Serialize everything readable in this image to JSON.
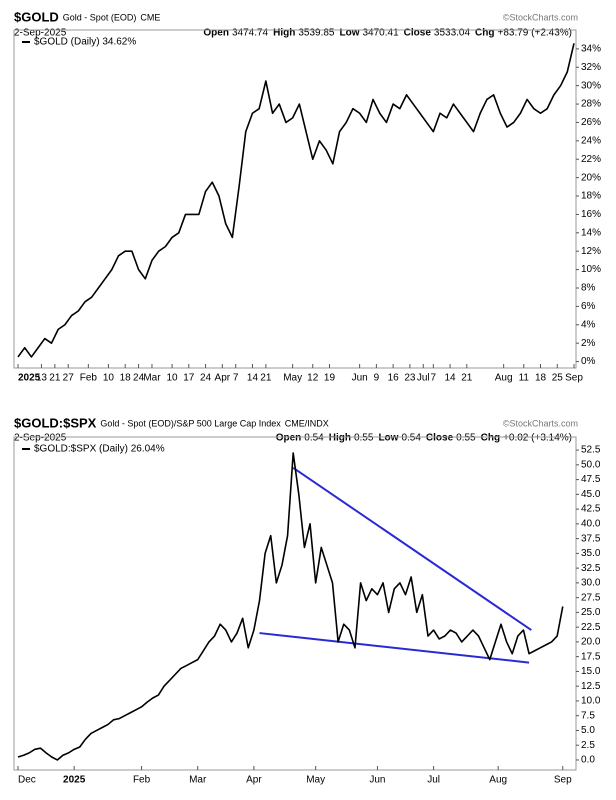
{
  "chart_data": [
    {
      "type": "line",
      "symbol": "$GOLD",
      "name": "Gold - Spot (EOD)",
      "exchange": "CME",
      "source": "©StockCharts.com",
      "date": "2-Sep-2025",
      "ohlc": [
        {
          "label": "Open",
          "value": 3474.74
        },
        {
          "label": "High",
          "value": 3539.85
        },
        {
          "label": "Low",
          "value": 3470.41
        },
        {
          "label": "Close",
          "value": 3533.04
        },
        {
          "label": "Chg",
          "value": "+83.79 (+2.43%)"
        }
      ],
      "series": [
        {
          "name": "$GOLD (Daily) 34.62%",
          "color": "#000000",
          "values": [
            0.5,
            1.5,
            0.5,
            1.5,
            2.5,
            2,
            3.5,
            4,
            5,
            5.5,
            6.5,
            7,
            8,
            9,
            10,
            11.5,
            12,
            12,
            10,
            9,
            11,
            12,
            12.5,
            13.5,
            14,
            16,
            16,
            16,
            18.5,
            19.5,
            18,
            15,
            13.5,
            19,
            25,
            27,
            27.5,
            30.5,
            27,
            28,
            26,
            26.5,
            28,
            25,
            22,
            24,
            23,
            21.5,
            25,
            26,
            27.5,
            27,
            26,
            28.5,
            27,
            26,
            28,
            27.5,
            29,
            28,
            27,
            26,
            25,
            27,
            26.5,
            28,
            27,
            26,
            25,
            27,
            28.5,
            29,
            27,
            25.5,
            26,
            27,
            28.5,
            27.5,
            27,
            27.5,
            29,
            30,
            31.5,
            34.6
          ]
        }
      ],
      "xlim": [
        0,
        83
      ],
      "xticks": [
        {
          "value": 0,
          "label": "2025"
        },
        {
          "value": 3.5,
          "label": "13"
        },
        {
          "value": 5.5,
          "label": "21"
        },
        {
          "value": 7.5,
          "label": "27"
        },
        {
          "value": 10.5,
          "label": "Feb"
        },
        {
          "value": 13.5,
          "label": "10"
        },
        {
          "value": 16,
          "label": "18"
        },
        {
          "value": 18,
          "label": "24"
        },
        {
          "value": 20,
          "label": "Mar"
        },
        {
          "value": 23,
          "label": "10"
        },
        {
          "value": 25.5,
          "label": "17"
        },
        {
          "value": 28,
          "label": "24"
        },
        {
          "value": 30.5,
          "label": "Apr"
        },
        {
          "value": 32.5,
          "label": "7"
        },
        {
          "value": 35,
          "label": "14"
        },
        {
          "value": 37,
          "label": "21"
        },
        {
          "value": 41,
          "label": "May"
        },
        {
          "value": 44,
          "label": "12"
        },
        {
          "value": 46.5,
          "label": "19"
        },
        {
          "value": 51,
          "label": "Jun"
        },
        {
          "value": 53.5,
          "label": "9"
        },
        {
          "value": 56,
          "label": "16"
        },
        {
          "value": 58.5,
          "label": "23"
        },
        {
          "value": 60.5,
          "label": "Jul"
        },
        {
          "value": 62,
          "label": "7"
        },
        {
          "value": 64.5,
          "label": "14"
        },
        {
          "value": 67,
          "label": "21"
        },
        {
          "value": 72.5,
          "label": "Aug"
        },
        {
          "value": 75.5,
          "label": "11"
        },
        {
          "value": 78,
          "label": "18"
        },
        {
          "value": 80.5,
          "label": "25"
        },
        {
          "value": 83,
          "label": "Sep"
        }
      ],
      "ylim": [
        -0.7,
        35.4
      ],
      "yticks": [
        {
          "value": 0,
          "label": "0%"
        },
        {
          "value": 2,
          "label": "2%"
        },
        {
          "value": 4,
          "label": "4%"
        },
        {
          "value": 6,
          "label": "6%"
        },
        {
          "value": 8,
          "label": "8%"
        },
        {
          "value": 10,
          "label": "10%"
        },
        {
          "value": 12,
          "label": "12%"
        },
        {
          "value": 14,
          "label": "14%"
        },
        {
          "value": 16,
          "label": "16%"
        },
        {
          "value": 18,
          "label": "18%"
        },
        {
          "value": 20,
          "label": "20%"
        },
        {
          "value": 22,
          "label": "22%"
        },
        {
          "value": 24,
          "label": "24%"
        },
        {
          "value": 26,
          "label": "26%"
        },
        {
          "value": 28,
          "label": "28%"
        },
        {
          "value": 30,
          "label": "30%"
        },
        {
          "value": 32,
          "label": "32%"
        },
        {
          "value": 34,
          "label": "34%"
        }
      ],
      "grid": false
    },
    {
      "type": "line",
      "symbol": "$GOLD:$SPX",
      "name": "Gold - Spot (EOD)/S&P 500 Large Cap Index",
      "exchange": "CME/INDX",
      "source": "©StockCharts.com",
      "date": "2-Sep-2025",
      "ohlc": [
        {
          "label": "Open",
          "value": 0.54
        },
        {
          "label": "High",
          "value": 0.55
        },
        {
          "label": "Low",
          "value": 0.54
        },
        {
          "label": "Close",
          "value": 0.55
        },
        {
          "label": "Chg",
          "value": "+0.02 (+3.14%)"
        }
      ],
      "series": [
        {
          "name": "$GOLD:$SPX (Daily) 26.04%",
          "color": "#000000",
          "values": [
            0.5,
            0.8,
            1.2,
            1.8,
            2,
            1.2,
            0.5,
            0,
            0.8,
            1.2,
            1.8,
            2.2,
            3.5,
            4.5,
            5,
            5.5,
            6,
            6.8,
            7,
            7.5,
            8,
            8.5,
            9,
            9.8,
            10.5,
            11,
            12.5,
            13.5,
            14.5,
            15.5,
            16,
            16.5,
            17,
            18.5,
            20,
            21,
            23,
            22,
            20,
            21.5,
            24,
            19,
            22,
            27,
            35,
            38,
            30,
            33,
            38,
            52,
            45,
            36,
            40,
            30,
            36,
            33,
            30,
            20,
            23,
            22,
            19,
            30,
            27,
            29,
            28,
            30,
            25,
            29,
            30,
            28,
            31,
            25,
            28,
            21,
            22,
            20.5,
            21,
            22,
            21.5,
            20,
            21,
            22,
            21,
            19,
            17,
            20,
            23,
            20,
            18,
            21,
            22,
            18,
            18.5,
            19,
            19.5,
            20,
            21,
            26
          ]
        }
      ],
      "trendlines": [
        {
          "color": "#2a2ad4",
          "x": [
            49,
            91.4
          ],
          "y": [
            49.5,
            22
          ]
        },
        {
          "color": "#2a2ad4",
          "x": [
            43,
            91
          ],
          "y": [
            21.5,
            16.5
          ]
        }
      ],
      "xlim": [
        0,
        99
      ],
      "xticks": [
        {
          "value": 0,
          "label": "Dec"
        },
        {
          "value": 10,
          "label": "2025"
        },
        {
          "value": 22,
          "label": "Feb"
        },
        {
          "value": 32,
          "label": "Mar"
        },
        {
          "value": 42,
          "label": "Apr"
        },
        {
          "value": 53,
          "label": "May"
        },
        {
          "value": 64,
          "label": "Jun"
        },
        {
          "value": 74,
          "label": "Jul"
        },
        {
          "value": 85.5,
          "label": "Aug"
        },
        {
          "value": 97,
          "label": "Sep"
        }
      ],
      "ylim": [
        -1.7,
        53.7
      ],
      "yticks": [
        {
          "value": 0,
          "label": "0.0"
        },
        2.5,
        {
          "value": 5,
          "label": "5.0"
        },
        7.5,
        {
          "value": 10,
          "label": "10.0"
        },
        12.5,
        {
          "value": 15,
          "label": "15.0"
        },
        17.5,
        {
          "value": 20,
          "label": "20.0"
        },
        22.5,
        {
          "value": 25,
          "label": "25.0"
        },
        27.5,
        {
          "value": 30,
          "label": "30.0"
        },
        32.5,
        {
          "value": 35,
          "label": "35.0"
        },
        37.5,
        {
          "value": 40,
          "label": "40.0"
        },
        42.5,
        {
          "value": 45,
          "label": "45.0"
        },
        47.5,
        {
          "value": 50,
          "label": "50.0"
        },
        52.5
      ],
      "grid": false
    }
  ]
}
